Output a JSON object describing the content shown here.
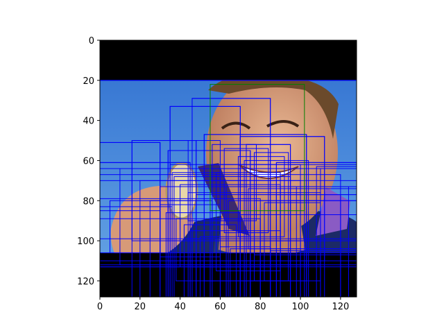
{
  "chart_data": {
    "type": "image-with-boxes",
    "xlim": [
      0,
      128
    ],
    "ylim": [
      128,
      0
    ],
    "x_ticks": [
      0,
      20,
      40,
      60,
      80,
      100,
      120
    ],
    "y_ticks": [
      0,
      20,
      40,
      60,
      80,
      100,
      120
    ],
    "grid": false,
    "colors": {
      "detection_box": "#0000ff",
      "highlight_box": "#008000",
      "letterbox_band": "#000000",
      "sky": "#4a90d9",
      "skin": "#d79a78",
      "hair": "#6b4a2b",
      "shirt": "#1c2a66",
      "ribbon": "#8a5bc4",
      "medal": "#e8d8a8"
    },
    "highlight_box": [
      55,
      22,
      102,
      85
    ],
    "boxes": [
      [
        0,
        0,
        128,
        20
      ],
      [
        0,
        20,
        128,
        128
      ],
      [
        35,
        33,
        70,
        128
      ],
      [
        35,
        33,
        70,
        113
      ],
      [
        46,
        29,
        85,
        128
      ],
      [
        46,
        29,
        85,
        113
      ],
      [
        0,
        51,
        30,
        128
      ],
      [
        0,
        51,
        30,
        113
      ],
      [
        16,
        50,
        48,
        100
      ],
      [
        16,
        50,
        48,
        128
      ],
      [
        34,
        55,
        75,
        110
      ],
      [
        34,
        55,
        75,
        128
      ],
      [
        52,
        47,
        103,
        120
      ],
      [
        52,
        47,
        103,
        128
      ],
      [
        70,
        48,
        112,
        128
      ],
      [
        70,
        48,
        112,
        110
      ],
      [
        73,
        52,
        95,
        128
      ],
      [
        73,
        52,
        95,
        100
      ],
      [
        77,
        56,
        94,
        120
      ],
      [
        88,
        61,
        128,
        128
      ],
      [
        88,
        61,
        128,
        100
      ],
      [
        0,
        61,
        45,
        128
      ],
      [
        0,
        61,
        45,
        110
      ],
      [
        0,
        64,
        60,
        128
      ],
      [
        0,
        67,
        120,
        128
      ],
      [
        0,
        70,
        100,
        128
      ],
      [
        0,
        79,
        80,
        128
      ],
      [
        10,
        64,
        110,
        112
      ],
      [
        20,
        70,
        128,
        128
      ],
      [
        30,
        73,
        128,
        113
      ],
      [
        35,
        62,
        128,
        128
      ],
      [
        37,
        68,
        95,
        128
      ],
      [
        40,
        72,
        90,
        110
      ],
      [
        44,
        76,
        110,
        128
      ],
      [
        48,
        77,
        128,
        128
      ],
      [
        55,
        62,
        100,
        128
      ],
      [
        58,
        66,
        90,
        115
      ],
      [
        63,
        73,
        128,
        128
      ],
      [
        64,
        80,
        110,
        128
      ],
      [
        70,
        87,
        128,
        128
      ],
      [
        74,
        74,
        128,
        104
      ],
      [
        75,
        77,
        120,
        128
      ],
      [
        77,
        80,
        128,
        107
      ],
      [
        82,
        81,
        110,
        120
      ],
      [
        88,
        77,
        128,
        128
      ],
      [
        90,
        73,
        128,
        110
      ],
      [
        95,
        80,
        128,
        128
      ],
      [
        98,
        73,
        124,
        128
      ],
      [
        102,
        64,
        128,
        128
      ],
      [
        108,
        63,
        128,
        128
      ],
      [
        0,
        83,
        36,
        128
      ],
      [
        0,
        89,
        40,
        113
      ],
      [
        0,
        85,
        30,
        128
      ],
      [
        5,
        80,
        30,
        106
      ],
      [
        25,
        80,
        55,
        128
      ],
      [
        30,
        82,
        60,
        108
      ],
      [
        33,
        86,
        70,
        128
      ],
      [
        38,
        89,
        80,
        120
      ],
      [
        42,
        92,
        68,
        128
      ],
      [
        45,
        95,
        90,
        128
      ],
      [
        50,
        98,
        75,
        128
      ],
      [
        55,
        100,
        100,
        128
      ],
      [
        60,
        103,
        85,
        128
      ],
      [
        65,
        104,
        128,
        128
      ],
      [
        80,
        100,
        110,
        128
      ],
      [
        85,
        105,
        128,
        128
      ],
      [
        0,
        99,
        128,
        128
      ],
      [
        0,
        106,
        128,
        128
      ],
      [
        0,
        112,
        128,
        128
      ],
      [
        34,
        80,
        56,
        128
      ],
      [
        36,
        66,
        60,
        100
      ],
      [
        44,
        50,
        60,
        90
      ],
      [
        56,
        52,
        78,
        90
      ],
      [
        62,
        54,
        84,
        96
      ],
      [
        69,
        58,
        92,
        98
      ],
      [
        72,
        60,
        104,
        128
      ]
    ]
  }
}
